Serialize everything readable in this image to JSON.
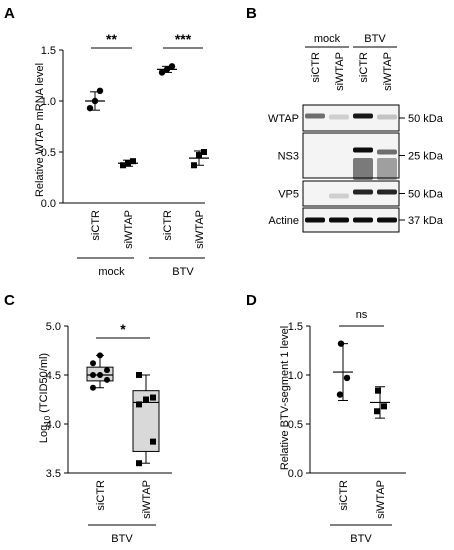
{
  "panels": {
    "A": "A",
    "B": "B",
    "C": "C",
    "D": "D"
  },
  "chart_data": [
    {
      "panel": "A",
      "type": "scatter",
      "ylabel": "Relative WTAP mRNA level",
      "ylim": [
        0,
        1.5
      ],
      "yticks": [
        "0.0",
        "0.5",
        "1.0",
        "1.5"
      ],
      "categories": [
        "siCTR",
        "siWTAP",
        "siCTR",
        "siWTAP"
      ],
      "groups": [
        {
          "label": "mock"
        },
        {
          "label": "BTV"
        }
      ],
      "series": [
        {
          "values": [
            [
              0.93,
              1.0,
              1.1
            ],
            [
              0.37,
              0.39,
              0.41
            ],
            [
              1.28,
              1.31,
              1.34
            ],
            [
              0.37,
              0.47,
              0.5
            ]
          ],
          "mean": [
            1.0,
            0.39,
            1.31,
            0.44
          ],
          "sd": [
            0.09,
            0.03,
            0.03,
            0.07
          ]
        }
      ],
      "significance": [
        "**",
        "***"
      ]
    },
    {
      "panel": "B",
      "type": "blot",
      "groups": [
        {
          "label": "mock"
        },
        {
          "label": "BTV"
        }
      ],
      "lanes": [
        "siCTR",
        "siWTAP",
        "siCTR",
        "siWTAP"
      ],
      "rows": [
        {
          "label": "WTAP",
          "marker": "50 kDa"
        },
        {
          "label": "NS3",
          "marker": "25 kDa"
        },
        {
          "label": "VP5",
          "marker": "50 kDa"
        },
        {
          "label": "Actine",
          "marker": "37 kDa"
        }
      ]
    },
    {
      "panel": "C",
      "type": "box",
      "ylabel_main": "Log",
      "ylabel_sub": "10",
      "ylabel_rest": " (TCID50/ml)",
      "ylim": [
        3.5,
        5.0
      ],
      "yticks": [
        "3.5",
        "4.0",
        "4.5",
        "5.0"
      ],
      "categories": [
        "siCTR",
        "siWTAP"
      ],
      "group": "BTV",
      "series": [
        {
          "points": [
            4.37,
            4.45,
            4.5,
            4.5,
            4.55,
            4.62,
            4.7
          ],
          "q1": 4.44,
          "median": 4.5,
          "q3": 4.58,
          "min": 4.37,
          "max": 4.7
        },
        {
          "points": [
            3.6,
            3.82,
            4.2,
            4.25,
            4.27,
            4.5
          ],
          "q1": 3.72,
          "median": 4.22,
          "q3": 4.34,
          "min": 3.6,
          "max": 4.5
        }
      ],
      "significance": "*"
    },
    {
      "panel": "D",
      "type": "scatter",
      "ylabel": "Relative BTV-segment 1 level",
      "ylim": [
        0,
        1.5
      ],
      "yticks": [
        "0.0",
        "0.5",
        "1.0",
        "1.5"
      ],
      "categories": [
        "siCTR",
        "siWTAP"
      ],
      "group": "BTV",
      "series": [
        {
          "values": [
            [
              0.8,
              0.97,
              1.32
            ],
            [
              0.63,
              0.68,
              0.84
            ]
          ],
          "mean": [
            1.03,
            0.72
          ],
          "sd": [
            0.29,
            0.16
          ]
        }
      ],
      "significance": "ns"
    }
  ]
}
